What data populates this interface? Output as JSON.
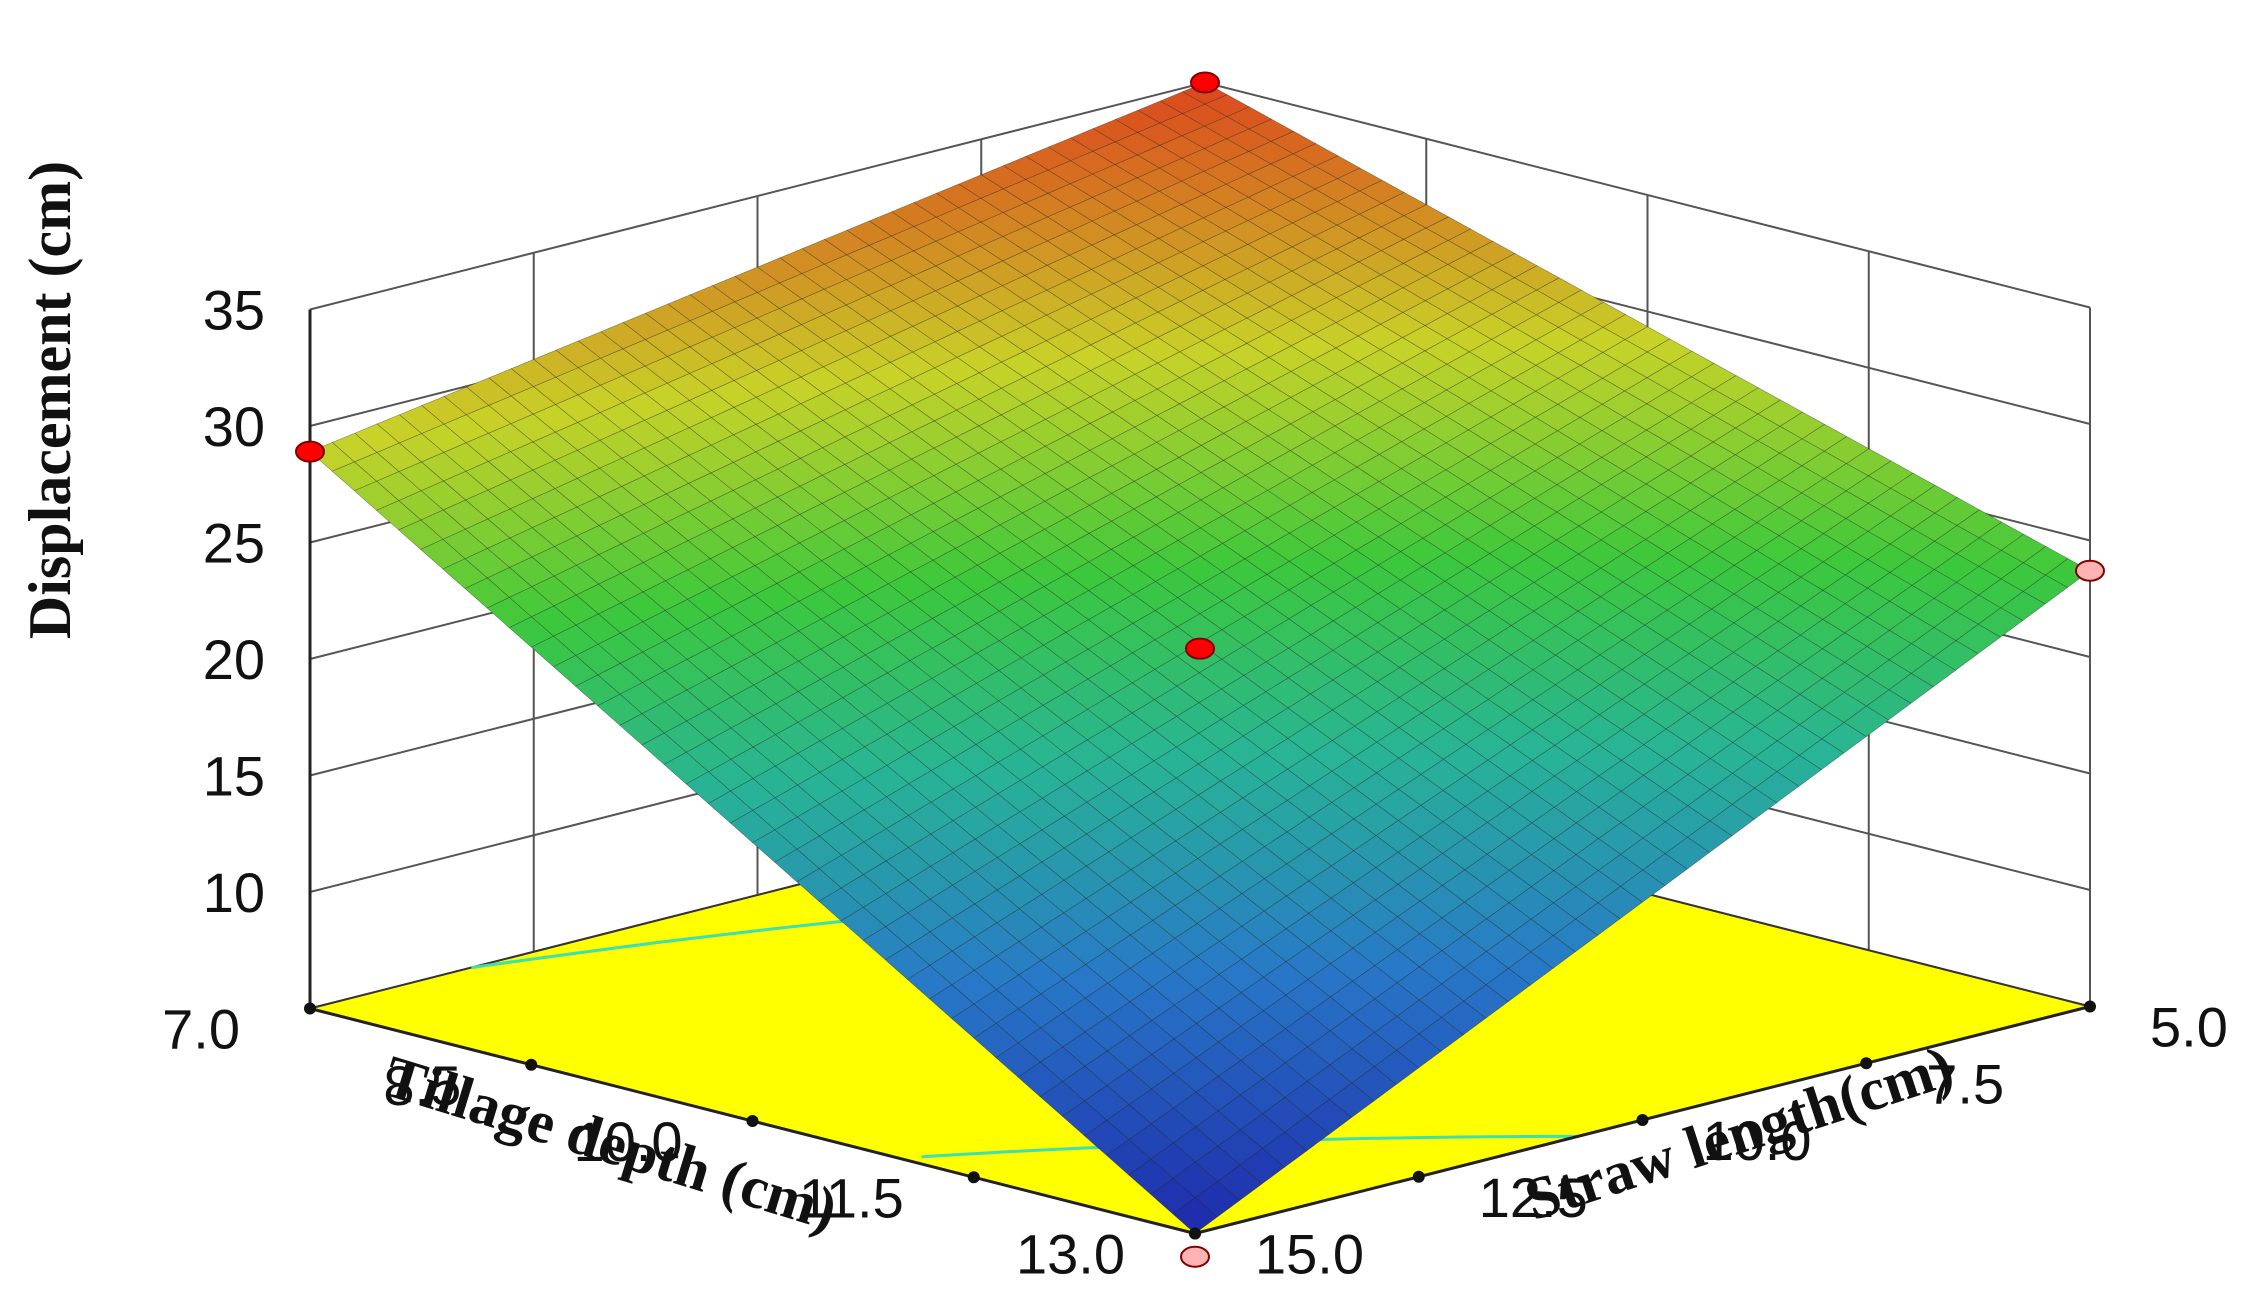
{
  "chart_data": {
    "type": "surface3d",
    "title": "",
    "zlabel": "Displacement (cm)",
    "xlabel": "Tillage depth (cm)",
    "ylabel": "Straw length(cm)",
    "x_ticks": [
      "7.0",
      "8.5",
      "10.0",
      "11.5",
      "13.0"
    ],
    "y_ticks": [
      "15.0",
      "12.5",
      "10.0",
      "7.5",
      "5.0"
    ],
    "z_ticks": [
      "10",
      "15",
      "20",
      "25",
      "30",
      "35"
    ],
    "xlim": [
      7.0,
      13.0
    ],
    "ylim": [
      5.0,
      15.0
    ],
    "zlim": [
      5,
      35
    ],
    "corner_values": [
      {
        "tillage_depth": 7.0,
        "straw_length": 15.0,
        "displacement": 28.9
      },
      {
        "tillage_depth": 7.0,
        "straw_length": 5.0,
        "displacement": 35.0
      },
      {
        "tillage_depth": 13.0,
        "straw_length": 5.0,
        "displacement": 23.7
      },
      {
        "tillage_depth": 13.0,
        "straw_length": 15.0,
        "displacement": 5.0
      }
    ],
    "design_points": [
      {
        "tillage_depth": 7.0,
        "straw_length": 5.0,
        "displacement": 35.0,
        "position": "above"
      },
      {
        "tillage_depth": 7.0,
        "straw_length": 15.0,
        "displacement": 28.9,
        "position": "above"
      },
      {
        "tillage_depth": 10.0,
        "straw_length": 10.0,
        "displacement": 20.4,
        "position": "above"
      },
      {
        "tillage_depth": 13.0,
        "straw_length": 5.0,
        "displacement": 23.7,
        "position": "below"
      },
      {
        "tillage_depth": 13.0,
        "straw_length": 15.0,
        "displacement": 4.0,
        "position": "below"
      }
    ],
    "floor_color": "#ffff00",
    "contour_color": "#3fe0b0",
    "grid": true
  }
}
